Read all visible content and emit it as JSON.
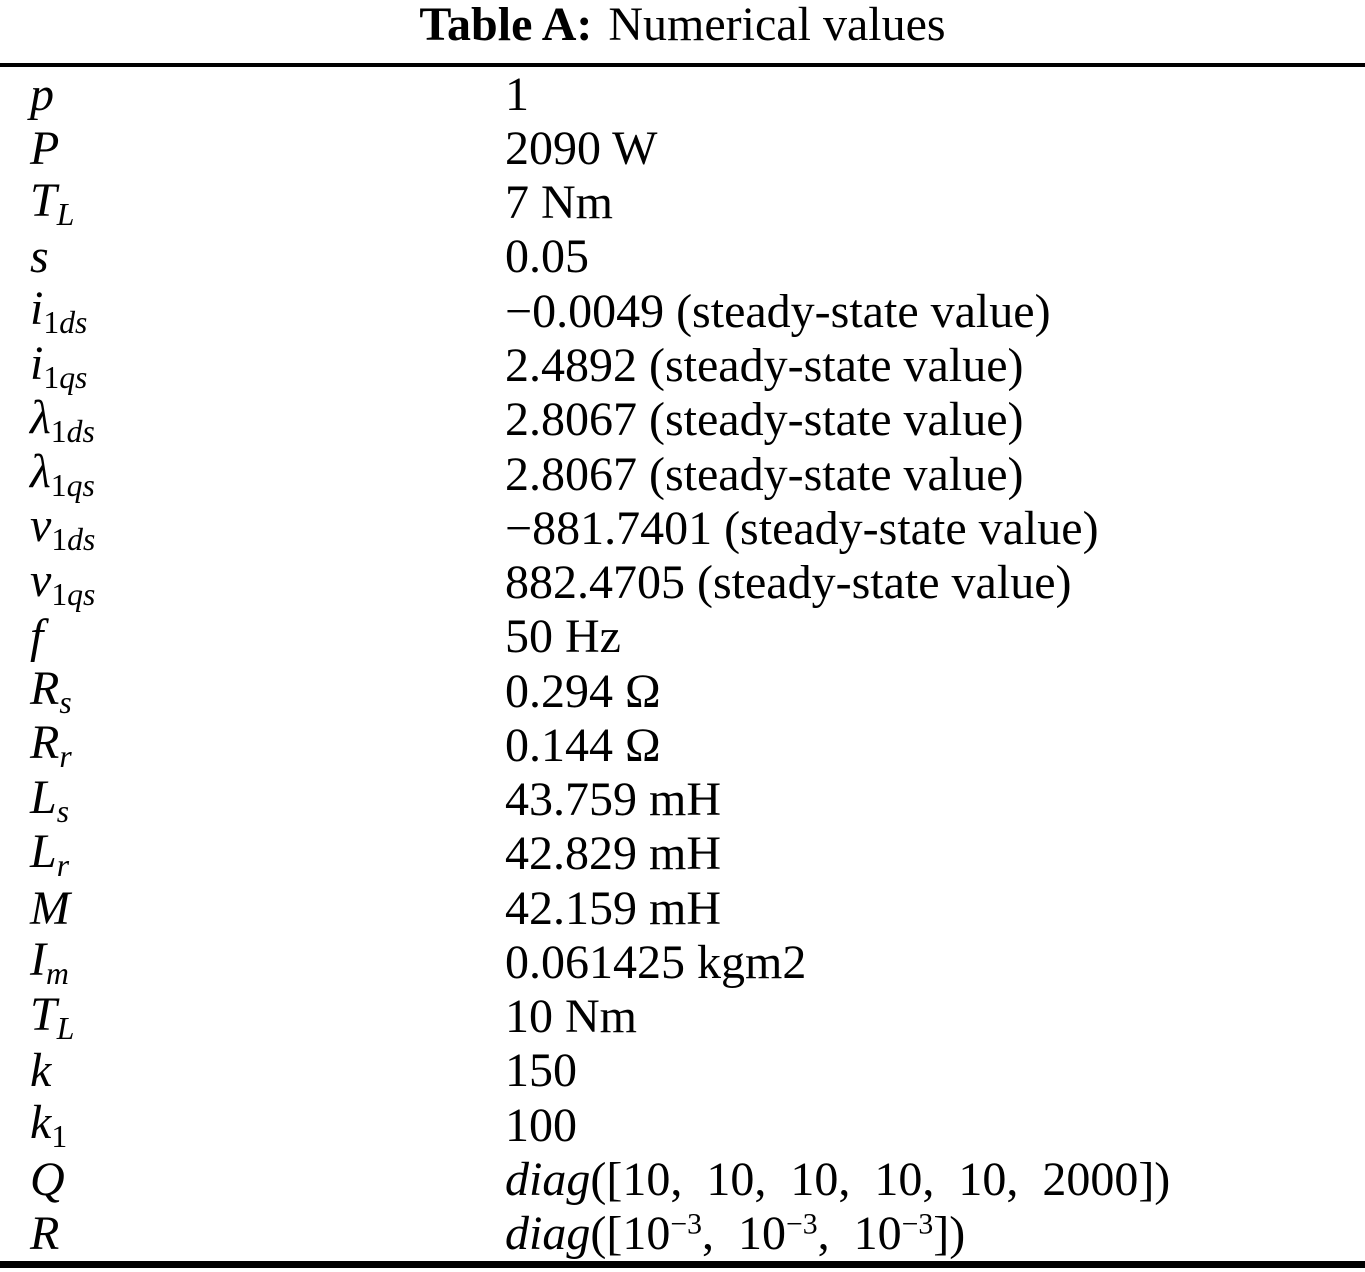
{
  "title": {
    "label": "Table A:",
    "caption": "Numerical values"
  },
  "table": {
    "rows": [
      {
        "symbol": [
          {
            "t": "p",
            "i": true
          }
        ],
        "value": [
          {
            "t": "1"
          }
        ]
      },
      {
        "symbol": [
          {
            "t": "P",
            "i": true
          }
        ],
        "value": [
          {
            "t": "2090 W"
          }
        ]
      },
      {
        "symbol": [
          {
            "t": "T",
            "i": true
          },
          {
            "t": "L",
            "i": true,
            "sub": true
          }
        ],
        "value": [
          {
            "t": "7 Nm"
          }
        ]
      },
      {
        "symbol": [
          {
            "t": "s",
            "i": true
          }
        ],
        "value": [
          {
            "t": "0.05"
          }
        ]
      },
      {
        "symbol": [
          {
            "t": "i",
            "i": true
          },
          {
            "t": "1",
            "sub": true
          },
          {
            "t": "ds",
            "i": true,
            "sub": true
          }
        ],
        "value": [
          {
            "t": "−0.0049 (steady-state value)"
          }
        ]
      },
      {
        "symbol": [
          {
            "t": "i",
            "i": true
          },
          {
            "t": "1",
            "sub": true
          },
          {
            "t": "qs",
            "i": true,
            "sub": true
          }
        ],
        "value": [
          {
            "t": "2.4892 (steady-state value)"
          }
        ]
      },
      {
        "symbol": [
          {
            "t": "λ",
            "i": true
          },
          {
            "t": "1",
            "sub": true
          },
          {
            "t": "ds",
            "i": true,
            "sub": true
          }
        ],
        "value": [
          {
            "t": "2.8067 (steady-state value)"
          }
        ]
      },
      {
        "symbol": [
          {
            "t": "λ",
            "i": true
          },
          {
            "t": "1",
            "sub": true
          },
          {
            "t": "qs",
            "i": true,
            "sub": true
          }
        ],
        "value": [
          {
            "t": "2.8067 (steady-state value)"
          }
        ]
      },
      {
        "symbol": [
          {
            "t": "v",
            "i": true
          },
          {
            "t": "1",
            "sub": true
          },
          {
            "t": "ds",
            "i": true,
            "sub": true
          }
        ],
        "value": [
          {
            "t": "−881.7401 (steady-state value)"
          }
        ]
      },
      {
        "symbol": [
          {
            "t": "v",
            "i": true
          },
          {
            "t": "1",
            "sub": true
          },
          {
            "t": "qs",
            "i": true,
            "sub": true
          }
        ],
        "value": [
          {
            "t": "882.4705 (steady-state value)"
          }
        ]
      },
      {
        "symbol": [
          {
            "t": "f",
            "i": true
          }
        ],
        "value": [
          {
            "t": "50 Hz"
          }
        ]
      },
      {
        "symbol": [
          {
            "t": "R",
            "i": true
          },
          {
            "t": "s",
            "i": true,
            "sub": true
          }
        ],
        "value": [
          {
            "t": "0.294 Ω"
          }
        ]
      },
      {
        "symbol": [
          {
            "t": "R",
            "i": true
          },
          {
            "t": "r",
            "i": true,
            "sub": true
          }
        ],
        "value": [
          {
            "t": "0.144 Ω"
          }
        ]
      },
      {
        "symbol": [
          {
            "t": "L",
            "i": true
          },
          {
            "t": "s",
            "i": true,
            "sub": true
          }
        ],
        "value": [
          {
            "t": "43.759 mH"
          }
        ]
      },
      {
        "symbol": [
          {
            "t": "L",
            "i": true
          },
          {
            "t": "r",
            "i": true,
            "sub": true
          }
        ],
        "value": [
          {
            "t": "42.829 mH"
          }
        ]
      },
      {
        "symbol": [
          {
            "t": "M",
            "i": true
          }
        ],
        "value": [
          {
            "t": "42.159 mH"
          }
        ]
      },
      {
        "symbol": [
          {
            "t": "I",
            "i": true
          },
          {
            "t": "m",
            "i": true,
            "sub": true
          }
        ],
        "value": [
          {
            "t": "0.061425 kgm2"
          }
        ]
      },
      {
        "symbol": [
          {
            "t": "T",
            "i": true
          },
          {
            "t": "L",
            "i": true,
            "sub": true
          }
        ],
        "value": [
          {
            "t": "10 Nm"
          }
        ]
      },
      {
        "symbol": [
          {
            "t": "k",
            "i": true
          }
        ],
        "value": [
          {
            "t": "150"
          }
        ]
      },
      {
        "symbol": [
          {
            "t": "k",
            "i": true
          },
          {
            "t": "1",
            "sub": true
          }
        ],
        "value": [
          {
            "t": "100"
          }
        ]
      },
      {
        "symbol": [
          {
            "t": "Q",
            "i": true
          }
        ],
        "value": [
          {
            "t": "diag",
            "i": true
          },
          {
            "t": "([10, 10, 10, 10, 10, 2000])"
          }
        ]
      },
      {
        "symbol": [
          {
            "t": "R",
            "i": true
          }
        ],
        "value": [
          {
            "t": "diag",
            "i": true
          },
          {
            "t": "([10"
          },
          {
            "t": "−3",
            "sup": true
          },
          {
            "t": ", 10"
          },
          {
            "t": "−3",
            "sup": true
          },
          {
            "t": ", 10"
          },
          {
            "t": "−3",
            "sup": true
          },
          {
            "t": "])"
          }
        ]
      }
    ]
  }
}
